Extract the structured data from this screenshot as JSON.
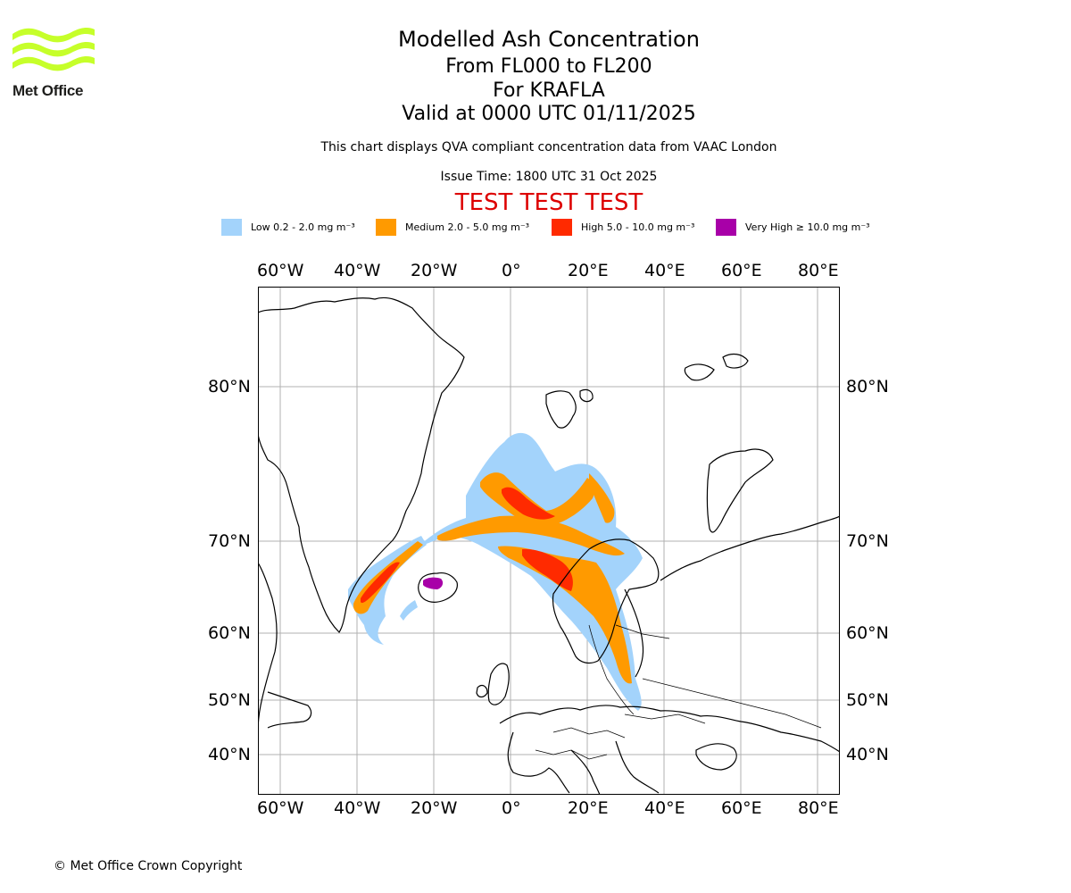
{
  "header": {
    "logo_text": "Met Office",
    "title": "Modelled Ash Concentration",
    "level_range": "From FL000 to FL200",
    "volcano": "For KRAFLA",
    "valid_time": "Valid at 0000 UTC 01/11/2025",
    "description": "This chart displays QVA compliant concentration data from VAAC London",
    "issue_time": "Issue Time: 1800 UTC 31 Oct 2025",
    "test_banner": "TEST TEST TEST"
  },
  "legend": [
    {
      "label": "Low 0.2 - 2.0 mg m⁻³",
      "color": "#a3d3fb"
    },
    {
      "label": "Medium 2.0 - 5.0 mg m⁻³",
      "color": "#ff9a00"
    },
    {
      "label": "High 5.0 - 10.0 mg m⁻³",
      "color": "#ff2a00"
    },
    {
      "label": "Very High ≥ 10.0 mg m⁻³",
      "color": "#a800a8"
    }
  ],
  "map": {
    "lon_ticks": [
      "60°W",
      "40°W",
      "20°W",
      "0°",
      "20°E",
      "40°E",
      "60°E",
      "80°E"
    ],
    "lat_ticks": [
      "80°N",
      "70°N",
      "60°N",
      "50°N",
      "40°N"
    ],
    "gridline_color": "#b0b0b0"
  },
  "footer": {
    "copyright": "© Met Office Crown Copyright"
  }
}
